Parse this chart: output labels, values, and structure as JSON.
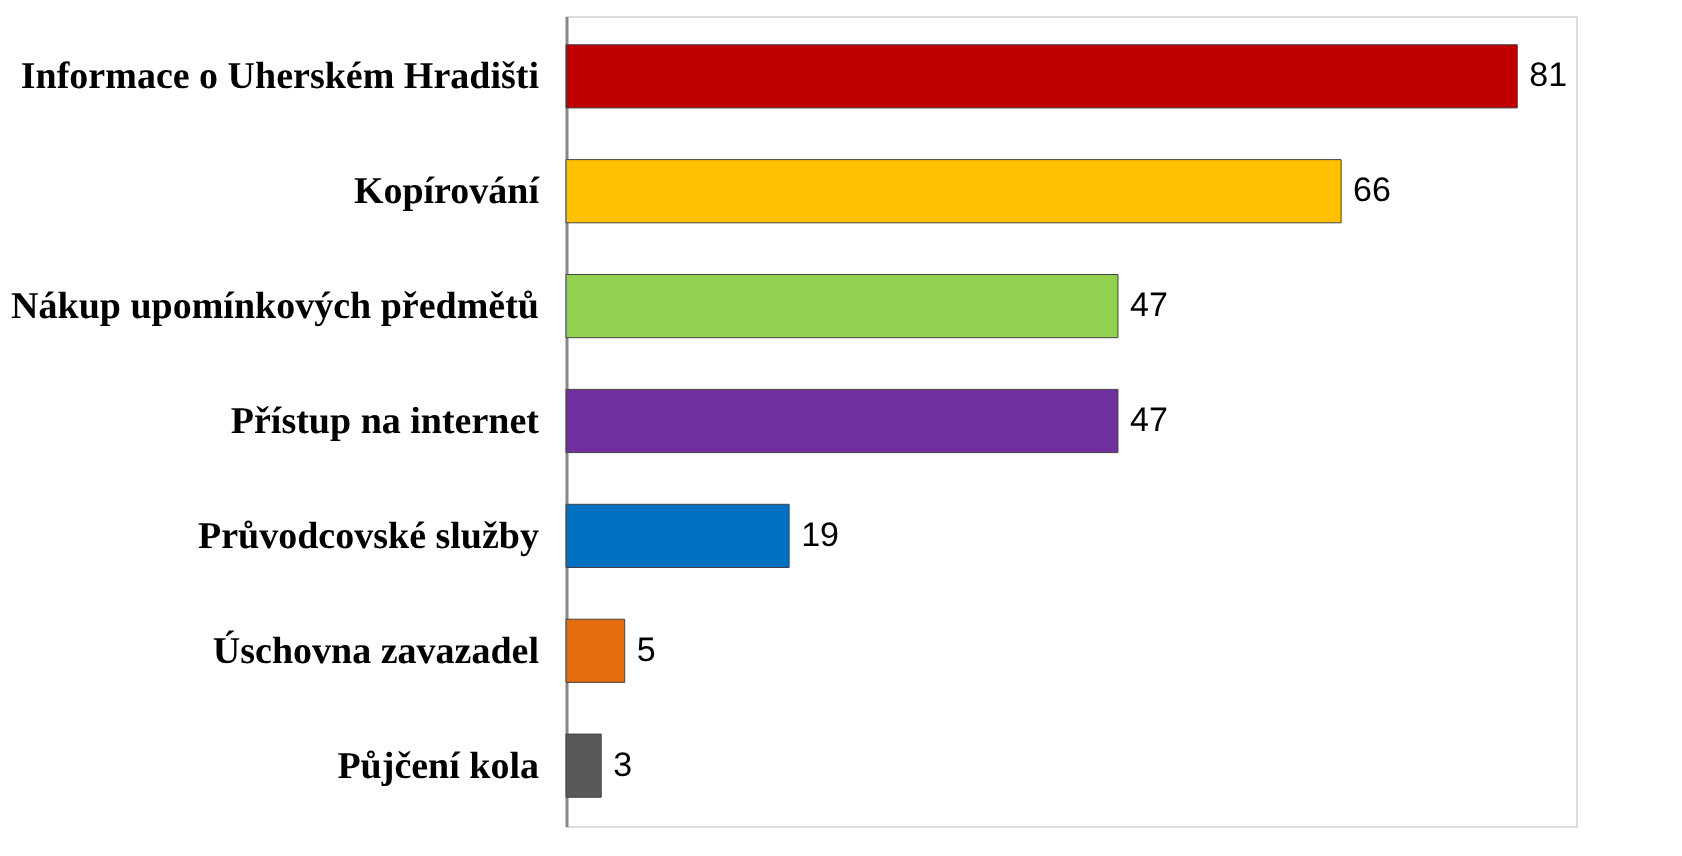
{
  "chart_data": {
    "type": "bar",
    "orientation": "horizontal",
    "categories": [
      "Informace o Uherském Hradišti",
      "Kopírování",
      "Nákup upomínkových předmětů",
      "Přístup na internet",
      "Průvodcovské služby",
      "Úschovna zavazadel",
      "Půjčení kola"
    ],
    "values": [
      81,
      66,
      47,
      47,
      19,
      5,
      3
    ],
    "colors": [
      "#c00000",
      "#ffc000",
      "#92d050",
      "#7030a0",
      "#0070c0",
      "#e46c0a",
      "#595959"
    ],
    "xlim": [
      0,
      86
    ],
    "data_labels": true,
    "tick_labels": "y"
  }
}
